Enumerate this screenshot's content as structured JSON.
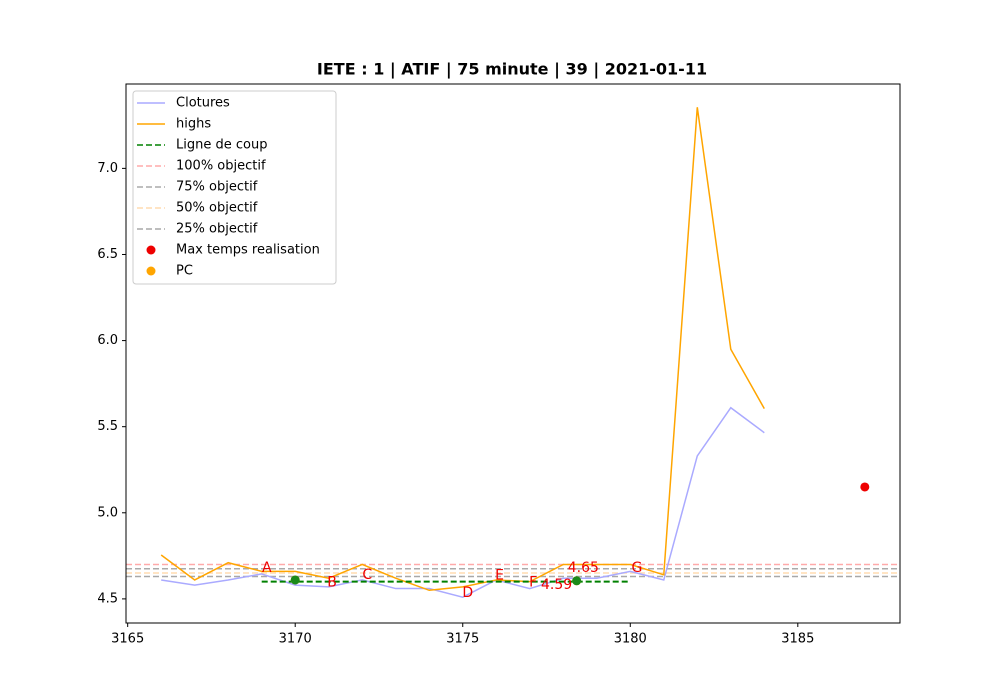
{
  "chart_data": {
    "type": "line",
    "title": "IETE : 1 | ATIF | 75 minute | 39 | 2021-01-11",
    "xlim": [
      3164.95,
      3188.05
    ],
    "ylim": [
      4.36,
      7.49
    ],
    "xticks": [
      3165,
      3170,
      3175,
      3180,
      3185
    ],
    "yticks": [
      {
        "value": 4.5,
        "label": "4.5"
      },
      {
        "value": 5.0,
        "label": "5.0"
      },
      {
        "value": 5.5,
        "label": "5.5"
      },
      {
        "value": 6.0,
        "label": "6.0"
      },
      {
        "value": 6.5,
        "label": "6.5"
      },
      {
        "value": 7.0,
        "label": "7.0"
      }
    ],
    "legend": "upper left",
    "series": [
      {
        "name": "Clotures",
        "kind": "line",
        "color": "#aaaaff",
        "dash": false,
        "x": [
          3166,
          3167,
          3168,
          3169,
          3170,
          3171,
          3172,
          3173,
          3174,
          3175,
          3176,
          3177,
          3178,
          3179,
          3180,
          3181,
          3182,
          3183,
          3184
        ],
        "values": [
          4.61,
          4.58,
          4.61,
          4.645,
          4.58,
          4.57,
          4.61,
          4.56,
          4.56,
          4.51,
          4.61,
          4.56,
          4.62,
          4.62,
          4.66,
          4.61,
          5.33,
          5.61,
          5.465
        ]
      },
      {
        "name": "highs",
        "kind": "line",
        "color": "#ffa500",
        "dash": false,
        "x": [
          3166,
          3167,
          3168,
          3169,
          3170,
          3171,
          3172,
          3173,
          3174,
          3175,
          3176,
          3177,
          3178,
          3179,
          3180,
          3181,
          3182,
          3183,
          3184
        ],
        "values": [
          4.755,
          4.61,
          4.71,
          4.66,
          4.66,
          4.62,
          4.7,
          4.62,
          4.55,
          4.57,
          4.61,
          4.6,
          4.7,
          4.7,
          4.7,
          4.64,
          7.355,
          5.95,
          5.605
        ]
      },
      {
        "name": "Ligne de coup",
        "kind": "line",
        "color": "#008000",
        "dash": true,
        "x": [
          3169,
          3180
        ],
        "values": [
          4.6,
          4.6
        ]
      },
      {
        "name": "100% objectif",
        "kind": "hline",
        "color": "#ffaaaa",
        "dash": true,
        "values": [
          4.7
        ]
      },
      {
        "name": "75% objectif",
        "kind": "hline",
        "color": "#aaaaaa",
        "dash": true,
        "values": [
          4.675
        ]
      },
      {
        "name": "50% objectif",
        "kind": "hline",
        "color": "#ffdcb0",
        "dash": true,
        "values": [
          4.65
        ]
      },
      {
        "name": "25% objectif",
        "kind": "hline",
        "color": "#a8a8a8",
        "dash": true,
        "values": [
          4.63
        ]
      },
      {
        "name": "Max temps realisation",
        "kind": "scatter",
        "color": "#ee0000",
        "x": [
          3187
        ],
        "values": [
          5.15
        ]
      },
      {
        "name": "PC",
        "kind": "scatter",
        "color": "#ffa500",
        "x": [
          3170,
          3178.4
        ],
        "values": [
          4.61,
          4.605
        ]
      },
      {
        "kind": "scatter",
        "color": "#1a8a1a",
        "x": [
          3170,
          3178.4
        ],
        "values": [
          4.61,
          4.605
        ]
      }
    ],
    "annotations": [
      {
        "text": "A",
        "x": 3169.15,
        "y": 4.68,
        "color": "#ee0000"
      },
      {
        "text": "B",
        "x": 3171.1,
        "y": 4.595,
        "color": "#ee0000"
      },
      {
        "text": "C",
        "x": 3172.15,
        "y": 4.64,
        "color": "#ee0000"
      },
      {
        "text": "D",
        "x": 3175.15,
        "y": 4.535,
        "color": "#ee0000"
      },
      {
        "text": "E",
        "x": 3176.1,
        "y": 4.635,
        "color": "#ee0000"
      },
      {
        "text": "F",
        "x": 3177.1,
        "y": 4.595,
        "color": "#ee0000"
      },
      {
        "text": "G",
        "x": 3180.2,
        "y": 4.68,
        "color": "#ee0000"
      },
      {
        "text": "4.65",
        "x": 3178.6,
        "y": 4.68,
        "color": "#ee0000"
      },
      {
        "text": "4.59",
        "x": 3177.8,
        "y": 4.58,
        "color": "#ee0000"
      }
    ]
  }
}
